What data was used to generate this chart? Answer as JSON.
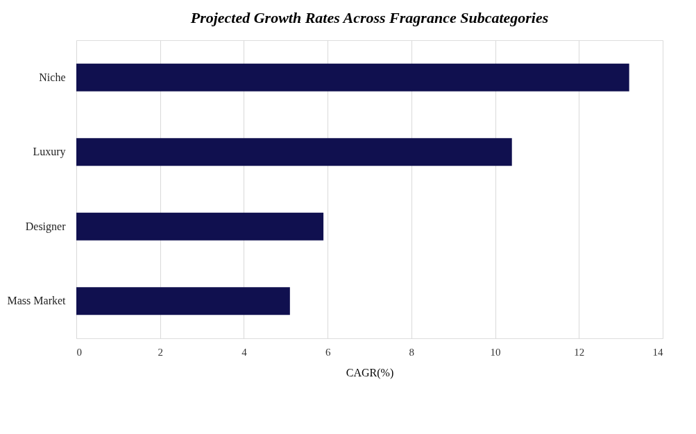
{
  "chart_data": {
    "type": "bar",
    "title": "Projected Growth Rates Across Fragrance Subcategories",
    "orientation": "horizontal",
    "categories": [
      "Niche",
      "Luxury",
      "Designer",
      "Mass Market"
    ],
    "values": [
      13.2,
      10.4,
      5.9,
      5.1
    ],
    "color": "#10104f",
    "xlabel": "CAGR(%)",
    "xlim": [
      0,
      14
    ],
    "xticks": [
      0,
      2,
      4,
      6,
      8,
      10,
      12,
      14
    ],
    "grid": "x"
  }
}
